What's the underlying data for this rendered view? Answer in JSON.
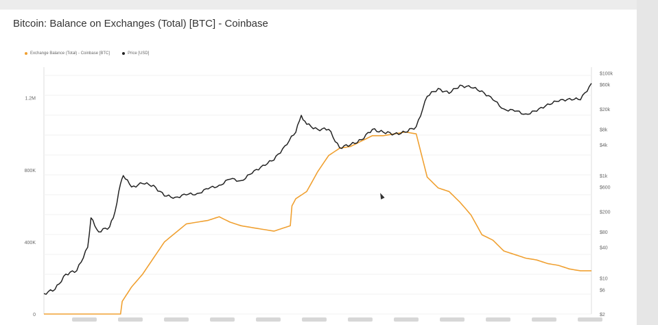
{
  "title": "Bitcoin: Balance on Exchanges (Total) [BTC] - Coinbase",
  "legend": [
    {
      "label": "Exchange Balance (Total) - Coinbase [BTC]",
      "color": "#f0a030"
    },
    {
      "label": "Price [USD]",
      "color": "#222222"
    }
  ],
  "chart_data": {
    "type": "line",
    "title": "Bitcoin: Balance on Exchanges (Total) [BTC] - Coinbase",
    "x_range": [
      0,
      100
    ],
    "y_left": {
      "ticks": [
        "0",
        "400K",
        "800K",
        "1.2M"
      ],
      "values": [
        0,
        400000,
        800000,
        1200000
      ],
      "ylim": [
        0,
        1370000
      ]
    },
    "y_right": {
      "scale": "log",
      "ticks": [
        "$2",
        "$6",
        "$10",
        "$40",
        "$80",
        "$200",
        "$600",
        "$1k",
        "$4k",
        "$8k",
        "$20k",
        "$60k",
        "$100k"
      ],
      "values": [
        2,
        6,
        10,
        40,
        80,
        200,
        600,
        1000,
        4000,
        8000,
        20000,
        60000,
        100000
      ]
    },
    "grid": true,
    "series": [
      {
        "name": "Exchange Balance (Total) - Coinbase [BTC]",
        "axis": "left",
        "color": "#f0a030",
        "x": [
          0,
          14,
          14.3,
          16,
          18,
          20,
          22,
          24,
          26,
          28,
          30,
          32,
          34,
          36,
          38,
          40,
          42,
          44,
          45,
          45.3,
          46,
          48,
          50,
          52,
          54,
          56,
          58,
          60,
          62,
          64,
          66,
          68,
          70,
          72,
          74,
          76,
          78,
          80,
          82,
          84,
          86,
          88,
          90,
          92,
          94,
          96,
          98,
          100
        ],
        "y": [
          0,
          0,
          70000,
          150000,
          220000,
          310000,
          400000,
          450000,
          500000,
          510000,
          520000,
          540000,
          510000,
          490000,
          480000,
          470000,
          460000,
          480000,
          490000,
          600000,
          640000,
          680000,
          790000,
          880000,
          920000,
          930000,
          960000,
          990000,
          990000,
          1000000,
          1010000,
          1000000,
          760000,
          700000,
          680000,
          620000,
          550000,
          440000,
          410000,
          350000,
          330000,
          310000,
          300000,
          280000,
          270000,
          250000,
          240000,
          240000
        ]
      },
      {
        "name": "Price [USD]",
        "axis": "right",
        "color": "#222222",
        "x": [
          0,
          2,
          4,
          6,
          8,
          8.6,
          10,
          12,
          13,
          14,
          14.5,
          16,
          18,
          20,
          22,
          24,
          26,
          28,
          30,
          32,
          34,
          36,
          38,
          40,
          42,
          44,
          46,
          47,
          48,
          50,
          52,
          54,
          56,
          58,
          60,
          62,
          64,
          66,
          68,
          70,
          72,
          74,
          76,
          78,
          80,
          82,
          84,
          86,
          88,
          90,
          92,
          94,
          96,
          98,
          100
        ],
        "y": [
          5,
          6,
          12,
          14,
          40,
          150,
          80,
          100,
          200,
          700,
          1000,
          600,
          700,
          650,
          400,
          380,
          420,
          450,
          550,
          650,
          850,
          800,
          1100,
          1600,
          2000,
          3800,
          7000,
          15000,
          10000,
          8000,
          8000,
          3500,
          4000,
          5000,
          8000,
          7000,
          6500,
          7000,
          9000,
          35000,
          50000,
          40000,
          58000,
          52000,
          45000,
          30000,
          20000,
          18000,
          16000,
          18000,
          25000,
          28000,
          32000,
          30000,
          63000
        ]
      }
    ]
  }
}
